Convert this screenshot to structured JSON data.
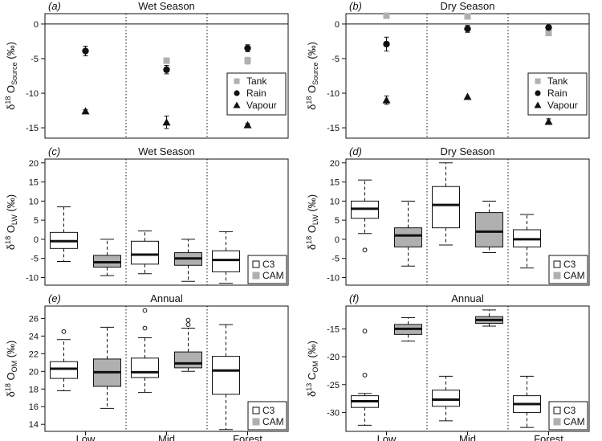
{
  "figure": {
    "x_category_labels": [
      "Low",
      "Mid",
      "Forest"
    ]
  },
  "chart_data": [
    {
      "type": "scatter",
      "panel_label": "(a)",
      "title": "Wet Season",
      "ylabel": "δ¹⁸O_Source (‰)",
      "ylabel_main": "δ",
      "ylabel_sup": "18",
      "ylabel_iso": "O",
      "ylabel_sub": "Source",
      "ylabel_unit": "(‰)",
      "ylim": [
        -16.5,
        1.5
      ],
      "yticks": [
        0,
        -5,
        -10,
        -15
      ],
      "categories": [
        "Low",
        "Mid",
        "Forest"
      ],
      "series": [
        {
          "name": "Tank",
          "marker": "square",
          "color": "#b0b0b0",
          "values": [
            null,
            -5.3,
            -5.3
          ],
          "err": [
            null,
            0,
            0.5
          ]
        },
        {
          "name": "Rain",
          "marker": "circle",
          "color": "#111111",
          "values": [
            -3.9,
            -6.6,
            -3.5
          ],
          "err": [
            0.7,
            0.6,
            0.5
          ]
        },
        {
          "name": "Vapour",
          "marker": "triangle",
          "color": "#111111",
          "values": [
            -12.6,
            -14.2,
            -14.6
          ],
          "err": [
            0.2,
            0.9,
            0.2
          ]
        }
      ],
      "legend": "right"
    },
    {
      "type": "scatter",
      "panel_label": "(b)",
      "title": "Dry Season",
      "ylabel": "δ¹⁸O_Source (‰)",
      "ylabel_main": "δ",
      "ylabel_sup": "18",
      "ylabel_iso": "O",
      "ylabel_sub": "Source",
      "ylabel_unit": "(‰)",
      "ylim": [
        -16.5,
        1.5
      ],
      "yticks": [
        0,
        -5,
        -10,
        -15
      ],
      "categories": [
        "Low",
        "Mid",
        "Forest"
      ],
      "series": [
        {
          "name": "Tank",
          "marker": "square",
          "color": "#b0b0b0",
          "values": [
            1.2,
            1.1,
            -1.3
          ],
          "err": [
            0,
            0,
            0
          ]
        },
        {
          "name": "Rain",
          "marker": "circle",
          "color": "#111111",
          "values": [
            -2.9,
            -0.7,
            -0.5
          ],
          "err": [
            1.0,
            0.5,
            0.3
          ]
        },
        {
          "name": "Vapour",
          "marker": "triangle",
          "color": "#111111",
          "values": [
            -11.0,
            -10.5,
            -14.1
          ],
          "err": [
            0.6,
            0,
            0.4
          ]
        }
      ],
      "legend": "right"
    },
    {
      "type": "box",
      "panel_label": "(c)",
      "title": "Wet Season",
      "ylabel": "δ¹⁸O_LW (‰)",
      "ylabel_main": "δ",
      "ylabel_sup": "18",
      "ylabel_iso": "O",
      "ylabel_sub": "LW",
      "ylabel_unit": "(‰)",
      "ylim": [
        -12,
        21
      ],
      "yticks": [
        20,
        15,
        10,
        5,
        0,
        -5,
        -10
      ],
      "categories": [
        "Low",
        "Mid",
        "Forest"
      ],
      "series": [
        {
          "name": "C3",
          "color": "#ffffff",
          "boxes": [
            {
              "min": -5.8,
              "q1": -2.4,
              "median": -0.5,
              "q3": 1.8,
              "max": 8.5,
              "outliers": []
            },
            {
              "min": -9.0,
              "q1": -6.5,
              "median": -4.0,
              "q3": -0.5,
              "max": 2.2,
              "outliers": []
            },
            {
              "min": -11.5,
              "q1": -8.5,
              "median": -5.4,
              "q3": -3.0,
              "max": 2.0,
              "outliers": []
            }
          ]
        },
        {
          "name": "CAM",
          "color": "#b0b0b0",
          "boxes": [
            {
              "min": -9.5,
              "q1": -7.3,
              "median": -6.0,
              "q3": -4.2,
              "max": 0.0,
              "outliers": []
            },
            {
              "min": -11.0,
              "q1": -6.8,
              "median": -5.0,
              "q3": -3.5,
              "max": 0.0,
              "outliers": []
            },
            null
          ]
        }
      ],
      "legend": "bottom-right"
    },
    {
      "type": "box",
      "panel_label": "(d)",
      "title": "Dry Season",
      "ylabel": "δ¹⁸O_LW (‰)",
      "ylabel_main": "δ",
      "ylabel_sup": "18",
      "ylabel_iso": "O",
      "ylabel_sub": "LW",
      "ylabel_unit": "(‰)",
      "ylim": [
        -12,
        21
      ],
      "yticks": [
        20,
        15,
        10,
        5,
        0,
        -5,
        -10
      ],
      "categories": [
        "Low",
        "Mid",
        "Forest"
      ],
      "series": [
        {
          "name": "C3",
          "color": "#ffffff",
          "boxes": [
            {
              "min": 1.5,
              "q1": 5.5,
              "median": 8.0,
              "q3": 10.0,
              "max": 15.5,
              "outliers": [
                -2.8
              ]
            },
            {
              "min": -1.5,
              "q1": 3.0,
              "median": 9.0,
              "q3": 13.8,
              "max": 20.0,
              "outliers": []
            },
            {
              "min": -7.5,
              "q1": -2.0,
              "median": 0.0,
              "q3": 2.5,
              "max": 6.5,
              "outliers": []
            }
          ]
        },
        {
          "name": "CAM",
          "color": "#b0b0b0",
          "boxes": [
            {
              "min": -7.0,
              "q1": -2.0,
              "median": 1.0,
              "q3": 3.0,
              "max": 10.0,
              "outliers": []
            },
            {
              "min": -3.5,
              "q1": -2.0,
              "median": 2.0,
              "q3": 7.0,
              "max": 10.0,
              "outliers": []
            },
            null
          ]
        }
      ],
      "legend": "bottom-right"
    },
    {
      "type": "box",
      "panel_label": "(e)",
      "title": "Annual",
      "ylabel": "δ¹⁸O_OM (‰)",
      "ylabel_main": "δ",
      "ylabel_sup": "18",
      "ylabel_iso": "O",
      "ylabel_sub": "OM",
      "ylabel_unit": "(‰)",
      "ylim": [
        13.2,
        27.4
      ],
      "yticks": [
        26,
        24,
        22,
        20,
        18,
        16,
        14
      ],
      "categories": [
        "Low",
        "Mid",
        "Forest"
      ],
      "series": [
        {
          "name": "C3",
          "color": "#ffffff",
          "boxes": [
            {
              "min": 17.8,
              "q1": 19.2,
              "median": 20.3,
              "q3": 21.1,
              "max": 23.6,
              "outliers": [
                24.5
              ]
            },
            {
              "min": 17.6,
              "q1": 19.3,
              "median": 19.9,
              "q3": 21.5,
              "max": 23.8,
              "outliers": [
                24.9,
                26.9
              ]
            },
            {
              "min": 13.4,
              "q1": 17.4,
              "median": 20.1,
              "q3": 21.7,
              "max": 25.3,
              "outliers": []
            }
          ]
        },
        {
          "name": "CAM",
          "color": "#b0b0b0",
          "boxes": [
            {
              "min": 15.8,
              "q1": 18.3,
              "median": 19.9,
              "q3": 21.4,
              "max": 25.0,
              "outliers": []
            },
            {
              "min": 20.0,
              "q1": 20.4,
              "median": 20.9,
              "q3": 22.2,
              "max": 24.9,
              "outliers": [
                25.3,
                25.8
              ]
            },
            null
          ]
        }
      ],
      "legend": "bottom-right"
    },
    {
      "type": "box",
      "panel_label": "(f)",
      "title": "Annual",
      "ylabel": "δ¹³C_OM (‰)",
      "ylabel_main": "δ",
      "ylabel_sup": "13",
      "ylabel_iso": "C",
      "ylabel_sub": "OM",
      "ylabel_unit": "(‰)",
      "ylim": [
        -33.4,
        -10.9
      ],
      "yticks": [
        -15,
        -20,
        -25,
        -30
      ],
      "categories": [
        "Low",
        "Mid",
        "Forest"
      ],
      "series": [
        {
          "name": "C3",
          "color": "#ffffff",
          "boxes": [
            {
              "min": -32.3,
              "q1": -29.1,
              "median": -28.0,
              "q3": -27.0,
              "max": -26.6,
              "outliers": [
                -15.4,
                -23.3
              ]
            },
            {
              "min": -31.5,
              "q1": -28.9,
              "median": -27.7,
              "q3": -26.0,
              "max": -23.5,
              "outliers": []
            },
            {
              "min": -32.7,
              "q1": -30.0,
              "median": -28.5,
              "q3": -27.0,
              "max": -23.5,
              "outliers": []
            }
          ]
        },
        {
          "name": "CAM",
          "color": "#b0b0b0",
          "boxes": [
            {
              "min": -17.2,
              "q1": -16.0,
              "median": -15.0,
              "q3": -14.2,
              "max": -13.0,
              "outliers": []
            },
            {
              "min": -14.5,
              "q1": -14.0,
              "median": -13.4,
              "q3": -12.8,
              "max": -11.6,
              "outliers": []
            },
            null
          ]
        }
      ],
      "legend": "bottom-right"
    }
  ]
}
